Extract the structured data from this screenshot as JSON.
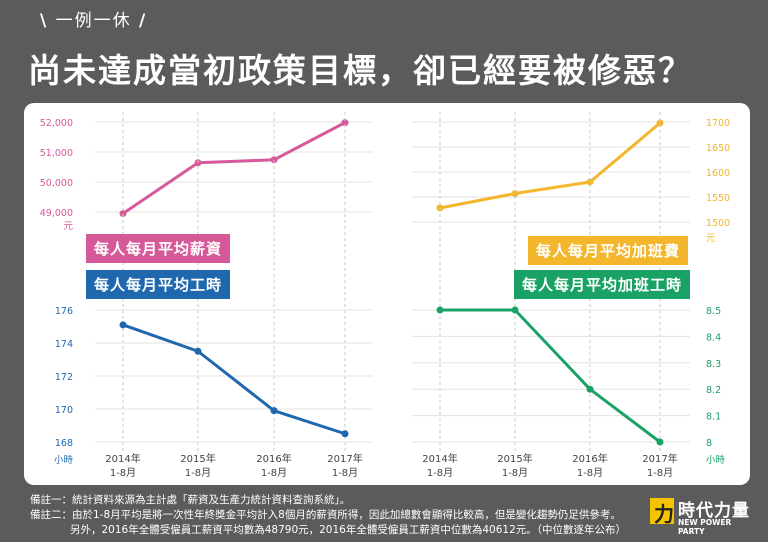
{
  "header": {
    "kicker": "一例一休",
    "title": "尚未達成當初政策目標，卻已經要被修惡？"
  },
  "colors": {
    "background": "#5b5b5b",
    "wage": "#d6599a",
    "hours": "#1f68ae",
    "overtime_pay": "#f3b62c",
    "overtime_hours": "#1aa266"
  },
  "chart_data": [
    {
      "type": "line",
      "ylabel": "元",
      "legend": "每人每月平均薪資",
      "x": [
        "2014年 1-8月",
        "2015年 1-8月",
        "2016年 1-8月",
        "2017年 1-8月"
      ],
      "series": [
        {
          "name": "每人每月平均薪資",
          "values": [
            48950,
            50640,
            50740,
            51980
          ]
        }
      ],
      "ylim": [
        48500,
        52200
      ],
      "yticks": [
        49000,
        50000,
        51000,
        52000
      ],
      "ytick_labels": [
        "49,000",
        "50,000",
        "51,000",
        "52,000"
      ]
    },
    {
      "type": "line",
      "ylabel": "元",
      "legend": "每人每月平均加班費",
      "x": [
        "2014年 1-8月",
        "2015年 1-8月",
        "2016年 1-8月",
        "2017年 1-8月"
      ],
      "series": [
        {
          "name": "每人每月平均加班費",
          "values": [
            1528,
            1557,
            1580,
            1698
          ]
        }
      ],
      "ylim": [
        1480,
        1710
      ],
      "yticks": [
        1500,
        1550,
        1600,
        1650,
        1700
      ],
      "ytick_labels": [
        "1500",
        "1550",
        "1600",
        "1650",
        "1700"
      ]
    },
    {
      "type": "line",
      "ylabel": "小時",
      "legend": "每人每月平均工時",
      "x": [
        "2014年 1-8月",
        "2015年 1-8月",
        "2016年 1-8月",
        "2017年 1-8月"
      ],
      "series": [
        {
          "name": "每人每月平均工時",
          "values": [
            175.1,
            173.5,
            169.9,
            168.5
          ]
        }
      ],
      "ylim": [
        167.5,
        176.5
      ],
      "yticks": [
        168,
        170,
        172,
        174,
        176
      ],
      "ytick_labels": [
        "168",
        "170",
        "172",
        "174",
        "176"
      ]
    },
    {
      "type": "line",
      "ylabel": "小時",
      "legend": "每人每月平均加班工時",
      "x": [
        "2014年 1-8月",
        "2015年 1-8月",
        "2016年 1-8月",
        "2017年 1-8月"
      ],
      "series": [
        {
          "name": "每人每月平均加班工時",
          "values": [
            8.5,
            8.5,
            8.2,
            8.0
          ]
        }
      ],
      "ylim": [
        7.95,
        8.55
      ],
      "yticks": [
        8,
        8.1,
        8.2,
        8.3,
        8.4,
        8.5
      ],
      "ytick_labels": [
        "8",
        "8.1",
        "8.2",
        "8.3",
        "8.4",
        "8.5"
      ]
    }
  ],
  "footnotes": [
    "備註一：統計資料來源為主計處「薪資及生產力統計資料查詢系統」。",
    "備註二：由於1-8月平均是將一次性年終獎金平均計入8個月的薪資所得，因此加總數會顯得比較高，但是變化趨勢仍足供參考。",
    "另外，2016年全體受僱員工薪資平均數為48790元，2016年全體受僱員工薪資中位數為40612元。（中位數逐年公布）"
  ],
  "logo": {
    "mark": "力",
    "zh": "時代力量",
    "en": "NEW POWER PARTY"
  }
}
